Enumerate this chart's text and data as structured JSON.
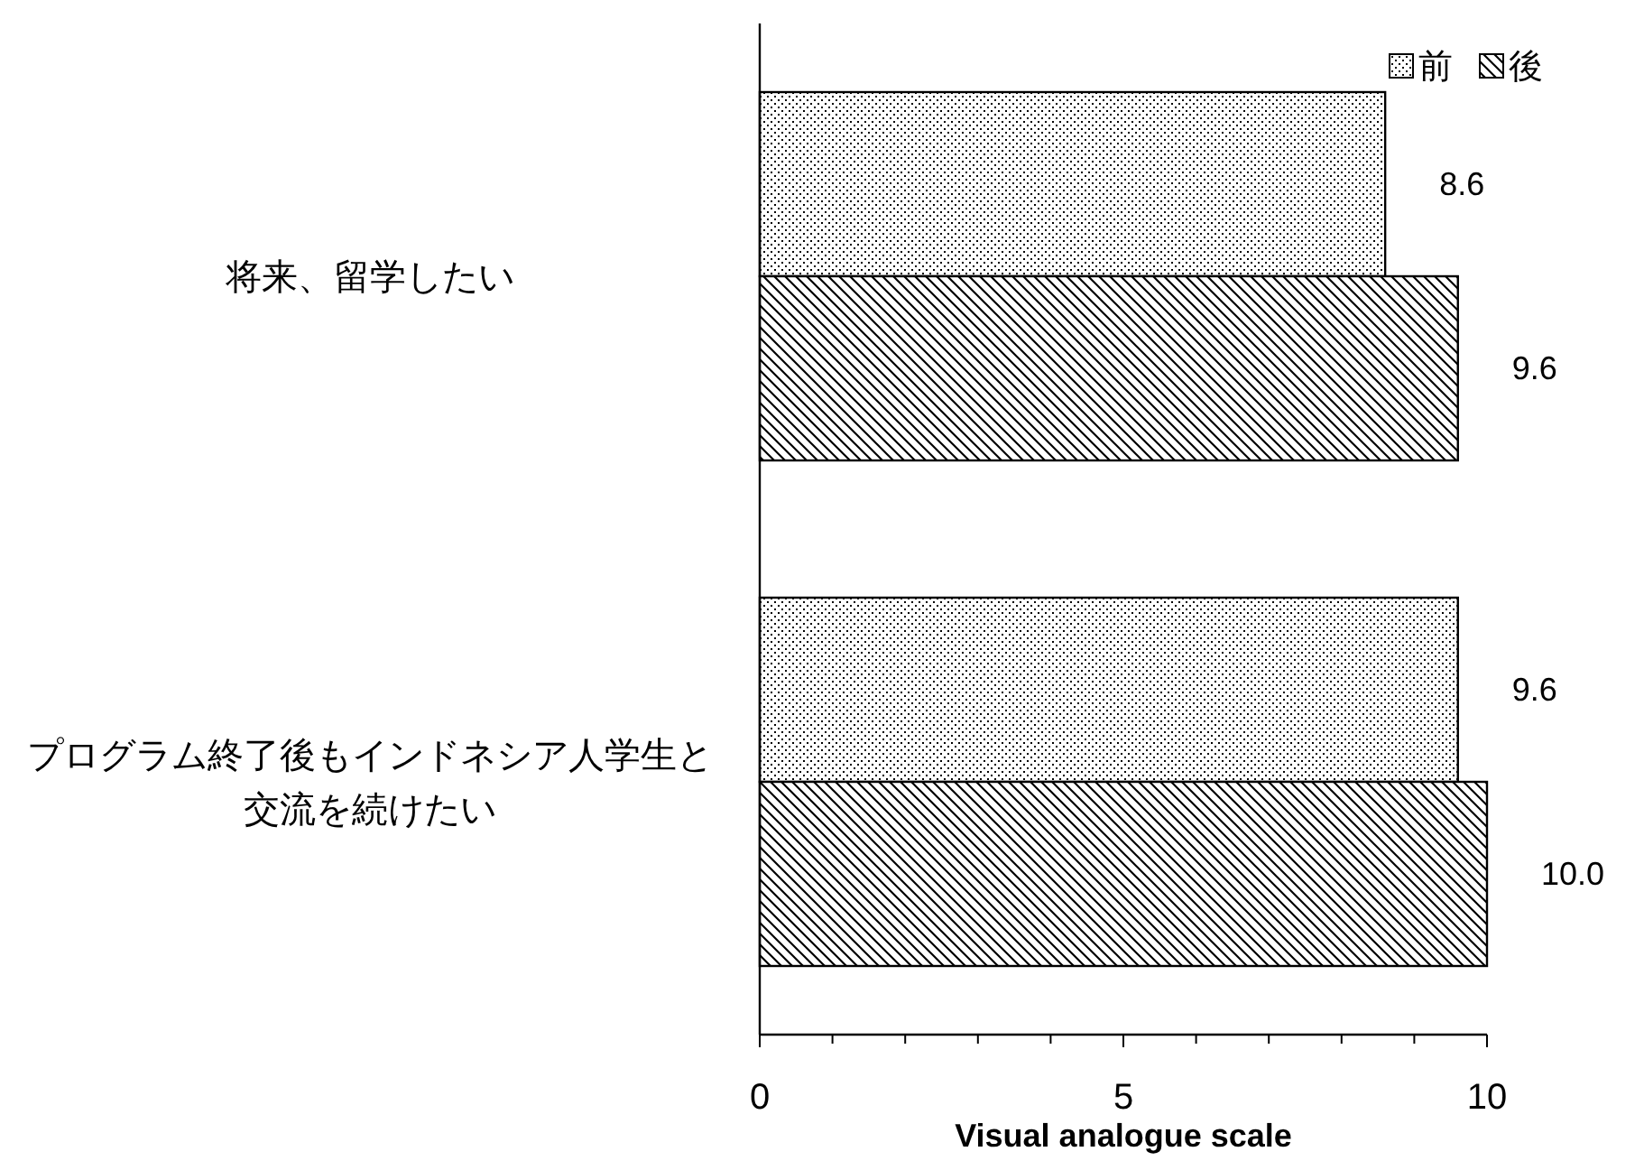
{
  "chart_data": {
    "type": "bar",
    "orientation": "horizontal",
    "xlabel": "Visual analogue scale",
    "categories": [
      "将来、留学したい",
      "プログラム終了後もインドネシア人学生と交流を続けたい"
    ],
    "series": [
      {
        "name": "前",
        "color": "#000000",
        "values": [
          8.6,
          9.6
        ],
        "value_labels": [
          "8.6",
          "9.6"
        ]
      },
      {
        "name": "後",
        "color": "#000000",
        "values": [
          9.6,
          10.0
        ],
        "value_labels": [
          "9.6",
          "10.0"
        ]
      }
    ],
    "xlim": [
      0,
      10
    ],
    "xticks": [
      0,
      {
        "value": 1,
        "label": null
      },
      {
        "value": 2,
        "label": null
      },
      {
        "value": 3,
        "label": null
      },
      {
        "value": 4,
        "label": null
      },
      5,
      {
        "value": 6,
        "label": null
      },
      {
        "value": 7,
        "label": null
      },
      {
        "value": 8,
        "label": null
      },
      {
        "value": 9,
        "label": null
      },
      10
    ],
    "grid": false,
    "legend": "top right"
  }
}
